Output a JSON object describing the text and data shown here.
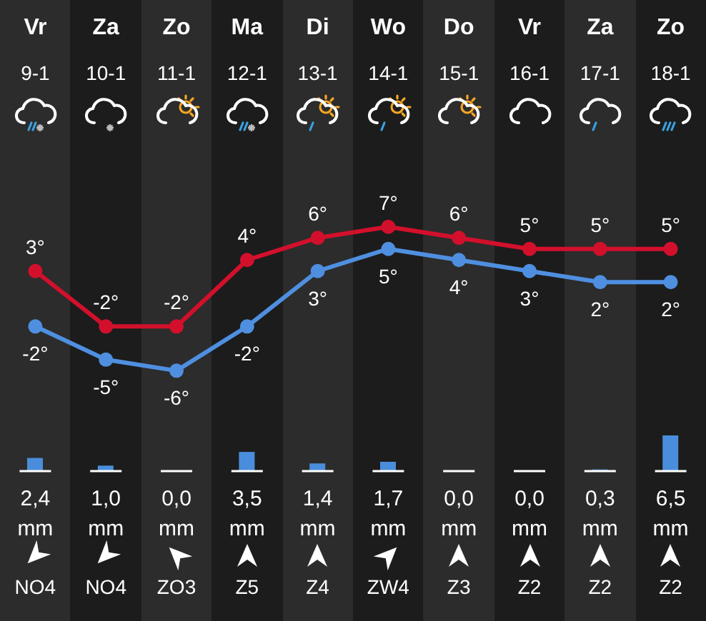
{
  "chart_data": [
    {
      "type": "line",
      "categories": [
        "Vr 9-1",
        "Za 10-1",
        "Zo 11-1",
        "Ma 12-1",
        "Di 13-1",
        "Wo 14-1",
        "Do 15-1",
        "Vr 16-1",
        "Za 17-1",
        "Zo 18-1"
      ],
      "tick_labels": "x",
      "marker": "circle",
      "series": [
        {
          "color": "#d3102c",
          "values": [
            3,
            -2,
            -2,
            4,
            6,
            7,
            6,
            5,
            5,
            5
          ],
          "value_labels": [
            "3°",
            "-2°",
            "-2°",
            "4°",
            "6°",
            "7°",
            "6°",
            "5°",
            "5°",
            "5°"
          ]
        },
        {
          "color": "#4f8fe0",
          "values": [
            -2,
            -5,
            -6,
            -2,
            3,
            5,
            4,
            3,
            2,
            2
          ],
          "value_labels": [
            "-2°",
            "-5°",
            "-6°",
            "-2°",
            "3°",
            "5°",
            "4°",
            "3°",
            "2°",
            "2°"
          ]
        }
      ]
    },
    {
      "type": "bar",
      "color": "#4a8ddc",
      "values": [
        2.4,
        1.0,
        0.0,
        3.5,
        1.4,
        1.7,
        0.0,
        0.0,
        0.3,
        6.5
      ],
      "value_labels": [
        "2,4 mm",
        "1,0 mm",
        "0,0 mm",
        "3,5 mm",
        "1,4 mm",
        "1,7 mm",
        "0,0 mm",
        "0,0 mm",
        "0,3 mm",
        "6,5 mm"
      ],
      "annotations": [
        "NO4",
        "NO4",
        "ZO3",
        "Z5",
        "Z4",
        "ZW4",
        "Z3",
        "Z2",
        "Z2",
        "Z2"
      ]
    }
  ]
}
